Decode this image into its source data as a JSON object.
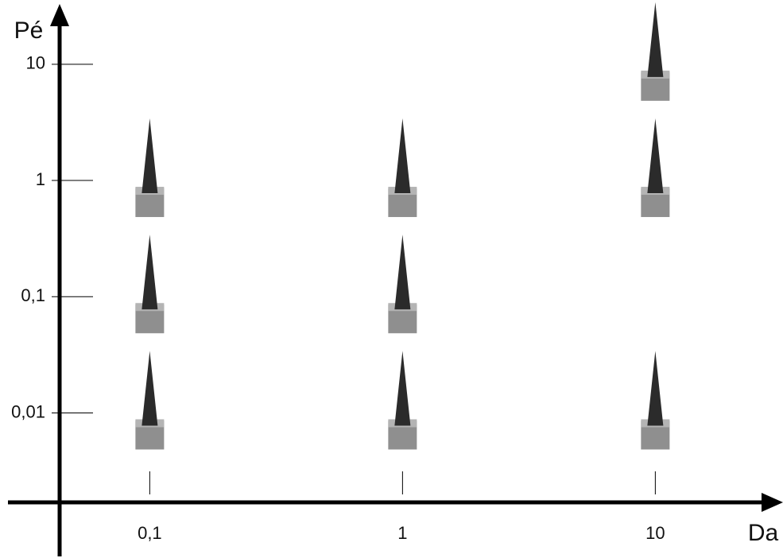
{
  "chart_data": {
    "type": "scatter",
    "x_label": "Da",
    "y_label": "Pé",
    "x": [
      0.1,
      0.1,
      0.1,
      1,
      1,
      1,
      10,
      10,
      10
    ],
    "values": [
      0.01,
      0.1,
      1,
      0.01,
      0.1,
      1,
      0.01,
      1,
      10
    ],
    "x_log": true,
    "y_log": true,
    "xlim": [
      0.044,
      32
    ],
    "ylim": [
      0.0017,
      33
    ],
    "xticks": [
      {
        "value": 0.1,
        "label": "0,1"
      },
      1,
      10
    ],
    "yticks": [
      {
        "value": 0.01,
        "label": "0,01"
      },
      {
        "value": 0.1,
        "label": "0,1"
      },
      1,
      10
    ],
    "color": "#2b2b2b"
  }
}
